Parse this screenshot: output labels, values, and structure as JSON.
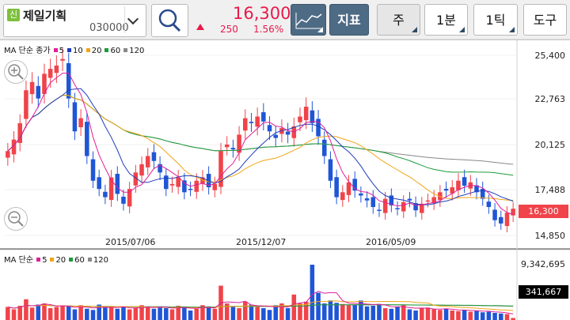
{
  "stock": {
    "badge": "신",
    "name": "제일기획",
    "code": "030000"
  },
  "quote": {
    "price": "16,300",
    "change": "250",
    "change_pct": "1.56%"
  },
  "toolbar": {
    "indicator_label": "지표",
    "period_week": "주",
    "period_min": "1분",
    "period_tick": "1틱",
    "tools": "도구"
  },
  "main_legend": {
    "label": "MA 단순 종가",
    "ma": [
      {
        "name": "5",
        "color": "#e01f9a"
      },
      {
        "name": "10",
        "color": "#1f3dbb"
      },
      {
        "name": "20",
        "color": "#f2a516"
      },
      {
        "name": "60",
        "color": "#1e9a3a"
      },
      {
        "name": "120",
        "color": "#888888"
      }
    ]
  },
  "vol_legend": {
    "label": "MA 단순",
    "ma": [
      {
        "name": "5",
        "color": "#e01f9a"
      },
      {
        "name": "20",
        "color": "#f2a516"
      },
      {
        "name": "60",
        "color": "#1e9a3a"
      },
      {
        "name": "120",
        "color": "#888888"
      }
    ]
  },
  "y_ticks": [
    "25,400",
    "22,763",
    "20,125",
    "17,488",
    "14,850"
  ],
  "x_ticks": [
    "2015/07/06",
    "2015/12/07",
    "2016/05/09"
  ],
  "current_price_tag": "16,300",
  "vol_max_tick": "9,342,695",
  "current_volume_tag": "341,667",
  "colors": {
    "up": "#f0434a",
    "down": "#1f56d6",
    "ma5": "#e01f9a",
    "ma10": "#1f3dbb",
    "ma20": "#f2a516",
    "ma60": "#1e9a3a",
    "ma120": "#888888"
  },
  "chart_data": {
    "type": "candlestick",
    "ylim": [
      14000,
      26200
    ],
    "closes": [
      19800,
      20500,
      21500,
      23500,
      24000,
      23000,
      24500,
      24800,
      25000,
      25400,
      23000,
      21000,
      21800,
      19500,
      18000,
      17500,
      17000,
      18200,
      17200,
      16600,
      17500,
      18500,
      19000,
      19500,
      19200,
      18500,
      17500,
      17800,
      18200,
      17300,
      17500,
      18000,
      18200,
      17600,
      17800,
      19800,
      20200,
      19900,
      20800,
      21800,
      21500,
      21900,
      21600,
      21000,
      20600,
      21200,
      20800,
      21300,
      21900,
      22500,
      21500,
      20700,
      19500,
      18000,
      17000,
      17300,
      17900,
      17400,
      17100,
      16800,
      16400,
      16200,
      16900,
      16500,
      16300,
      16700,
      16800,
      16200,
      16600,
      16800,
      17000,
      17300,
      17400,
      17600,
      18000,
      17700,
      17900,
      17300,
      16900,
      16400,
      15600,
      15400,
      16050,
      16300
    ],
    "volume_max": 9342695,
    "volumes": [
      2200000,
      1800000,
      2400000,
      3500000,
      2100000,
      2600000,
      2800000,
      2000000,
      2200000,
      2400000,
      2300000,
      1800000,
      2500000,
      1900000,
      1700000,
      2600000,
      2100000,
      2300000,
      1900000,
      2200000,
      1800000,
      2000000,
      2500000,
      2300000,
      1900000,
      2100000,
      2000000,
      1800000,
      2400000,
      2200000,
      1600000,
      1900000,
      2500000,
      2300000,
      1900000,
      5800000,
      2800000,
      2200000,
      2000000,
      3100000,
      2600000,
      2200000,
      2000000,
      1700000,
      2500000,
      2800000,
      2000000,
      4300000,
      2800000,
      3100000,
      9342695,
      4600000,
      2800000,
      3300000,
      2900000,
      2700000,
      2500000,
      2600000,
      3300000,
      2300000,
      2400000,
      2700000,
      2000000,
      1900000,
      2200000,
      2500000,
      1800000,
      1600000,
      2000000,
      2100000,
      1800000,
      1700000,
      1900000,
      1600000,
      1500000,
      1700000,
      1400000,
      1600000,
      1300000,
      1400000,
      1200000,
      1100000,
      1000000,
      341667
    ]
  }
}
